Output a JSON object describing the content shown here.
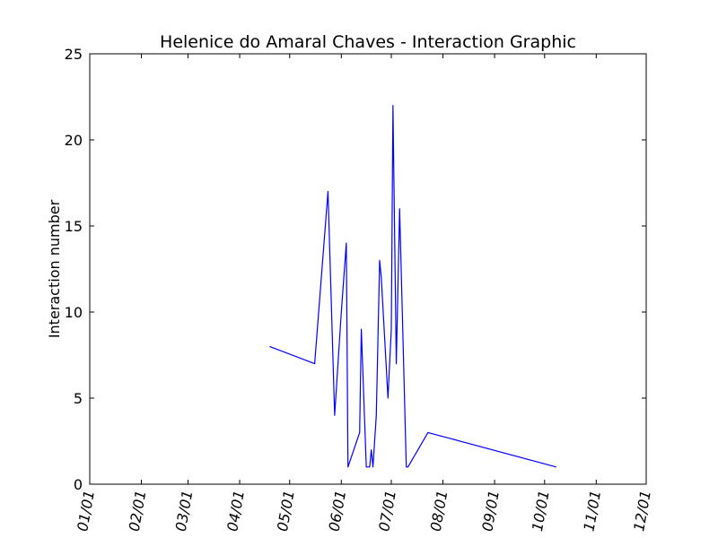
{
  "chart_data": {
    "type": "line",
    "title": "Helenice do Amaral Chaves - Interaction Graphic",
    "xlabel": "",
    "ylabel": "Interaction number",
    "x_axis": {
      "kind": "date",
      "ticks": [
        "01/01",
        "02/01",
        "03/01",
        "04/01",
        "05/01",
        "06/01",
        "07/01",
        "08/01",
        "09/01",
        "10/01",
        "11/01",
        "12/01"
      ]
    },
    "ylim": [
      0,
      25
    ],
    "y_ticks": [
      0,
      5,
      10,
      15,
      20,
      25
    ],
    "grid": false,
    "series": [
      {
        "color": "#0000ff",
        "points": [
          {
            "date": "04/19",
            "value": 8
          },
          {
            "date": "05/16",
            "value": 7
          },
          {
            "date": "05/24",
            "value": 17
          },
          {
            "date": "05/28",
            "value": 4
          },
          {
            "date": "06/01",
            "value": 10
          },
          {
            "date": "06/04",
            "value": 14
          },
          {
            "date": "06/05",
            "value": 1
          },
          {
            "date": "06/12",
            "value": 3
          },
          {
            "date": "06/13",
            "value": 9
          },
          {
            "date": "06/16",
            "value": 1
          },
          {
            "date": "06/18",
            "value": 1
          },
          {
            "date": "06/19",
            "value": 2
          },
          {
            "date": "06/20",
            "value": 1
          },
          {
            "date": "06/22",
            "value": 4
          },
          {
            "date": "06/24",
            "value": 13
          },
          {
            "date": "06/25",
            "value": 12
          },
          {
            "date": "06/29",
            "value": 5
          },
          {
            "date": "07/01",
            "value": 9
          },
          {
            "date": "07/02",
            "value": 22
          },
          {
            "date": "07/04",
            "value": 7
          },
          {
            "date": "07/06",
            "value": 16
          },
          {
            "date": "07/10",
            "value": 1
          },
          {
            "date": "07/11",
            "value": 1
          },
          {
            "date": "07/23",
            "value": 3
          },
          {
            "date": "10/08",
            "value": 1
          }
        ]
      }
    ]
  }
}
